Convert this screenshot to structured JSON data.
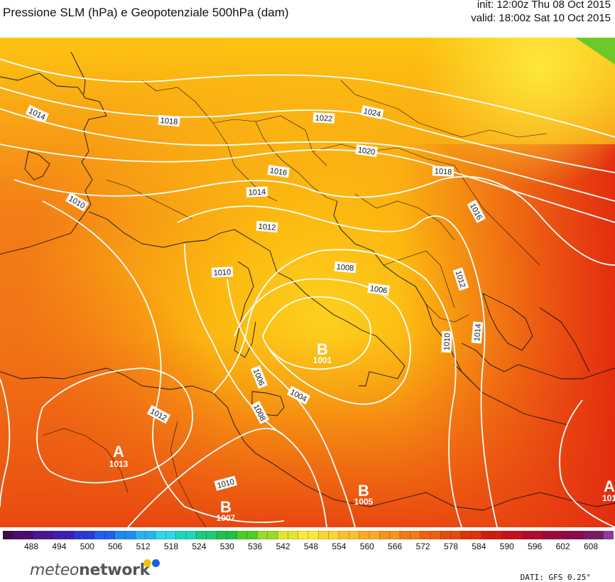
{
  "header": {
    "title": "Pressione SLM (hPa) e Geopotenziale 500hPa (dam)",
    "init": "init: 12:00z Thu 08 Oct 2015",
    "valid": "valid: 18:00z Sat 10 Oct 2015"
  },
  "map": {
    "isobar_labels": [
      "1014",
      "1018",
      "1022",
      "1024",
      "1020",
      "1016",
      "1018",
      "1010",
      "1014",
      "1012",
      "1016",
      "1010",
      "1008",
      "1006",
      "1012",
      "1010",
      "1014",
      "1006",
      "1004",
      "1008",
      "1012",
      "1010"
    ],
    "pressure_centers": [
      {
        "letter": "B",
        "value": "1001"
      },
      {
        "letter": "A",
        "value": "1013"
      },
      {
        "letter": "B",
        "value": "1005"
      },
      {
        "letter": "B",
        "value": "1007"
      },
      {
        "letter": "A",
        "value": "101"
      }
    ]
  },
  "colorbar": {
    "ticks": [
      "488",
      "494",
      "500",
      "506",
      "512",
      "518",
      "524",
      "530",
      "536",
      "542",
      "548",
      "554",
      "560",
      "566",
      "572",
      "578",
      "584",
      "590",
      "596",
      "602",
      "608"
    ],
    "colors": [
      "#3a0a4a",
      "#4a0d6e",
      "#4b1590",
      "#3f1fb0",
      "#2b3ad6",
      "#1f5ef0",
      "#1f8af2",
      "#28b4f0",
      "#2ed7e6",
      "#1fd6b5",
      "#1ccb7f",
      "#21bf4a",
      "#4fcc2a",
      "#9bd92a",
      "#e4e42e",
      "#fde83a",
      "#fdd434",
      "#fdc02c",
      "#fbaa24",
      "#f7931e",
      "#f27a17",
      "#ec6212",
      "#e64a0e",
      "#de320c",
      "#d41a10",
      "#c8101e",
      "#b40a2c",
      "#9e0838",
      "#8a0a4a",
      "#7a1a66",
      "#8c3aa0"
    ]
  },
  "branding": {
    "logo_text_1": "meteo",
    "logo_text_2": "network",
    "dot_colors": [
      "#f2c200",
      "#1a5fd6"
    ]
  },
  "footer": {
    "source": "DATI: GFS 0.25°"
  }
}
